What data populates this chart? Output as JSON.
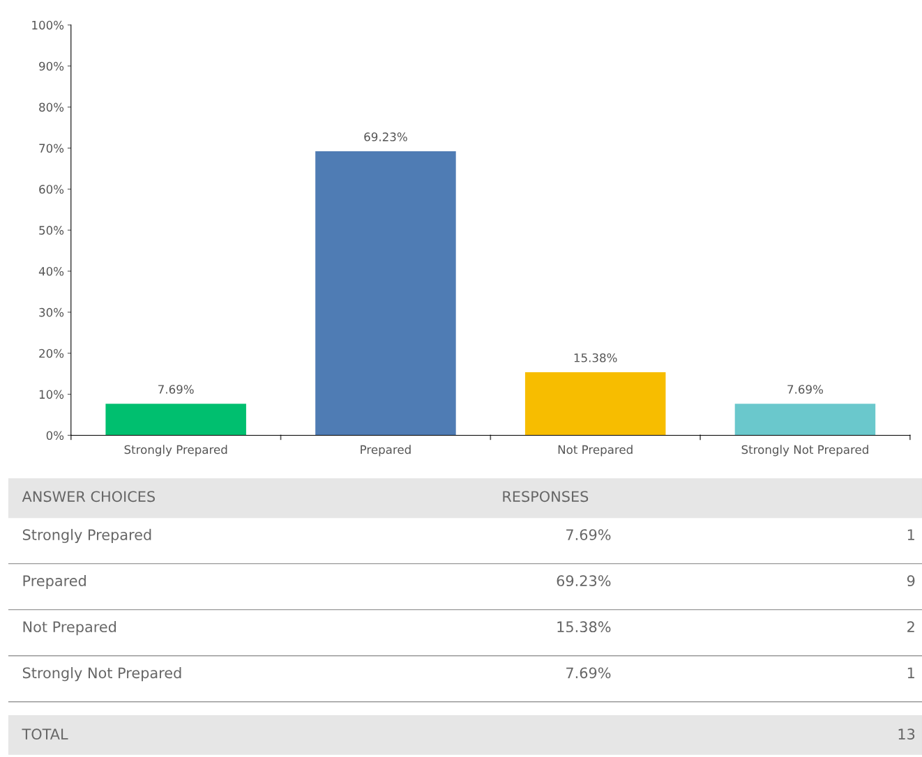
{
  "chart_data": {
    "type": "bar",
    "categories": [
      "Strongly Prepared",
      "Prepared",
      "Not Prepared",
      "Strongly Not Prepared"
    ],
    "values": [
      7.69,
      69.23,
      15.38,
      7.69
    ],
    "colors": [
      "#00bf6f",
      "#4f7cb4",
      "#f7bd00",
      "#6ac8cc"
    ],
    "ylim": [
      0,
      100
    ],
    "yticks": [
      {
        "value": 0,
        "label": "0%"
      },
      {
        "value": 10,
        "label": "10%"
      },
      {
        "value": 20,
        "label": "20%"
      },
      {
        "value": 30,
        "label": "30%"
      },
      {
        "value": 40,
        "label": "40%"
      },
      {
        "value": 50,
        "label": "50%"
      },
      {
        "value": 60,
        "label": "60%"
      },
      {
        "value": 70,
        "label": "70%"
      },
      {
        "value": 80,
        "label": "80%"
      },
      {
        "value": 90,
        "label": "90%"
      },
      {
        "value": 100,
        "label": "100%"
      }
    ],
    "value_labels": [
      "7.69%",
      "69.23%",
      "15.38%",
      "7.69%"
    ],
    "grid": false,
    "legend": false,
    "annotations": [
      "ANSWER CHOICES",
      "RESPONSES",
      "1",
      "9",
      "2",
      "1",
      "TOTAL",
      "13"
    ]
  }
}
